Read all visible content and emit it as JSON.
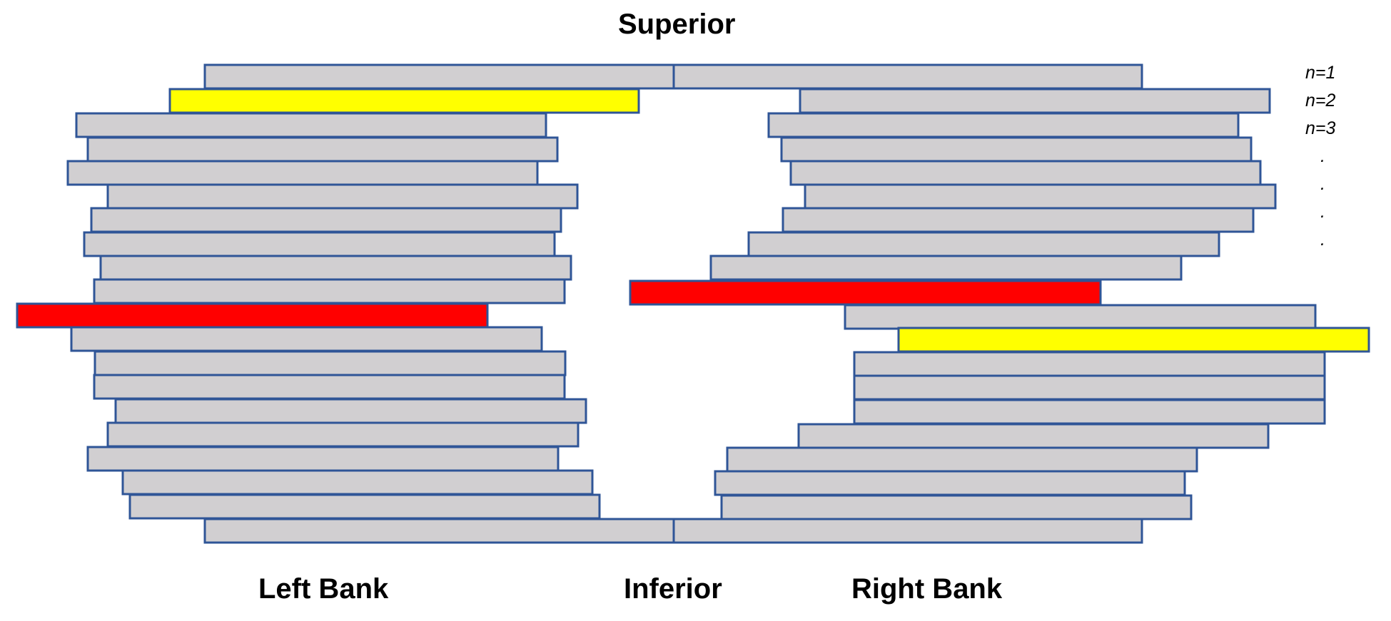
{
  "labels": {
    "top": "Superior",
    "bottom": "Inferior",
    "left": "Left Bank",
    "right": "Right Bank"
  },
  "row_index_labels": [
    "n=1",
    "n=2",
    "n=3",
    ".",
    ".",
    ".",
    "."
  ],
  "colors": {
    "bar_fill": "#d1cfd1",
    "bar_stroke": "#2f5597",
    "yellow": "#ffff00",
    "red": "#ff0000"
  }
}
